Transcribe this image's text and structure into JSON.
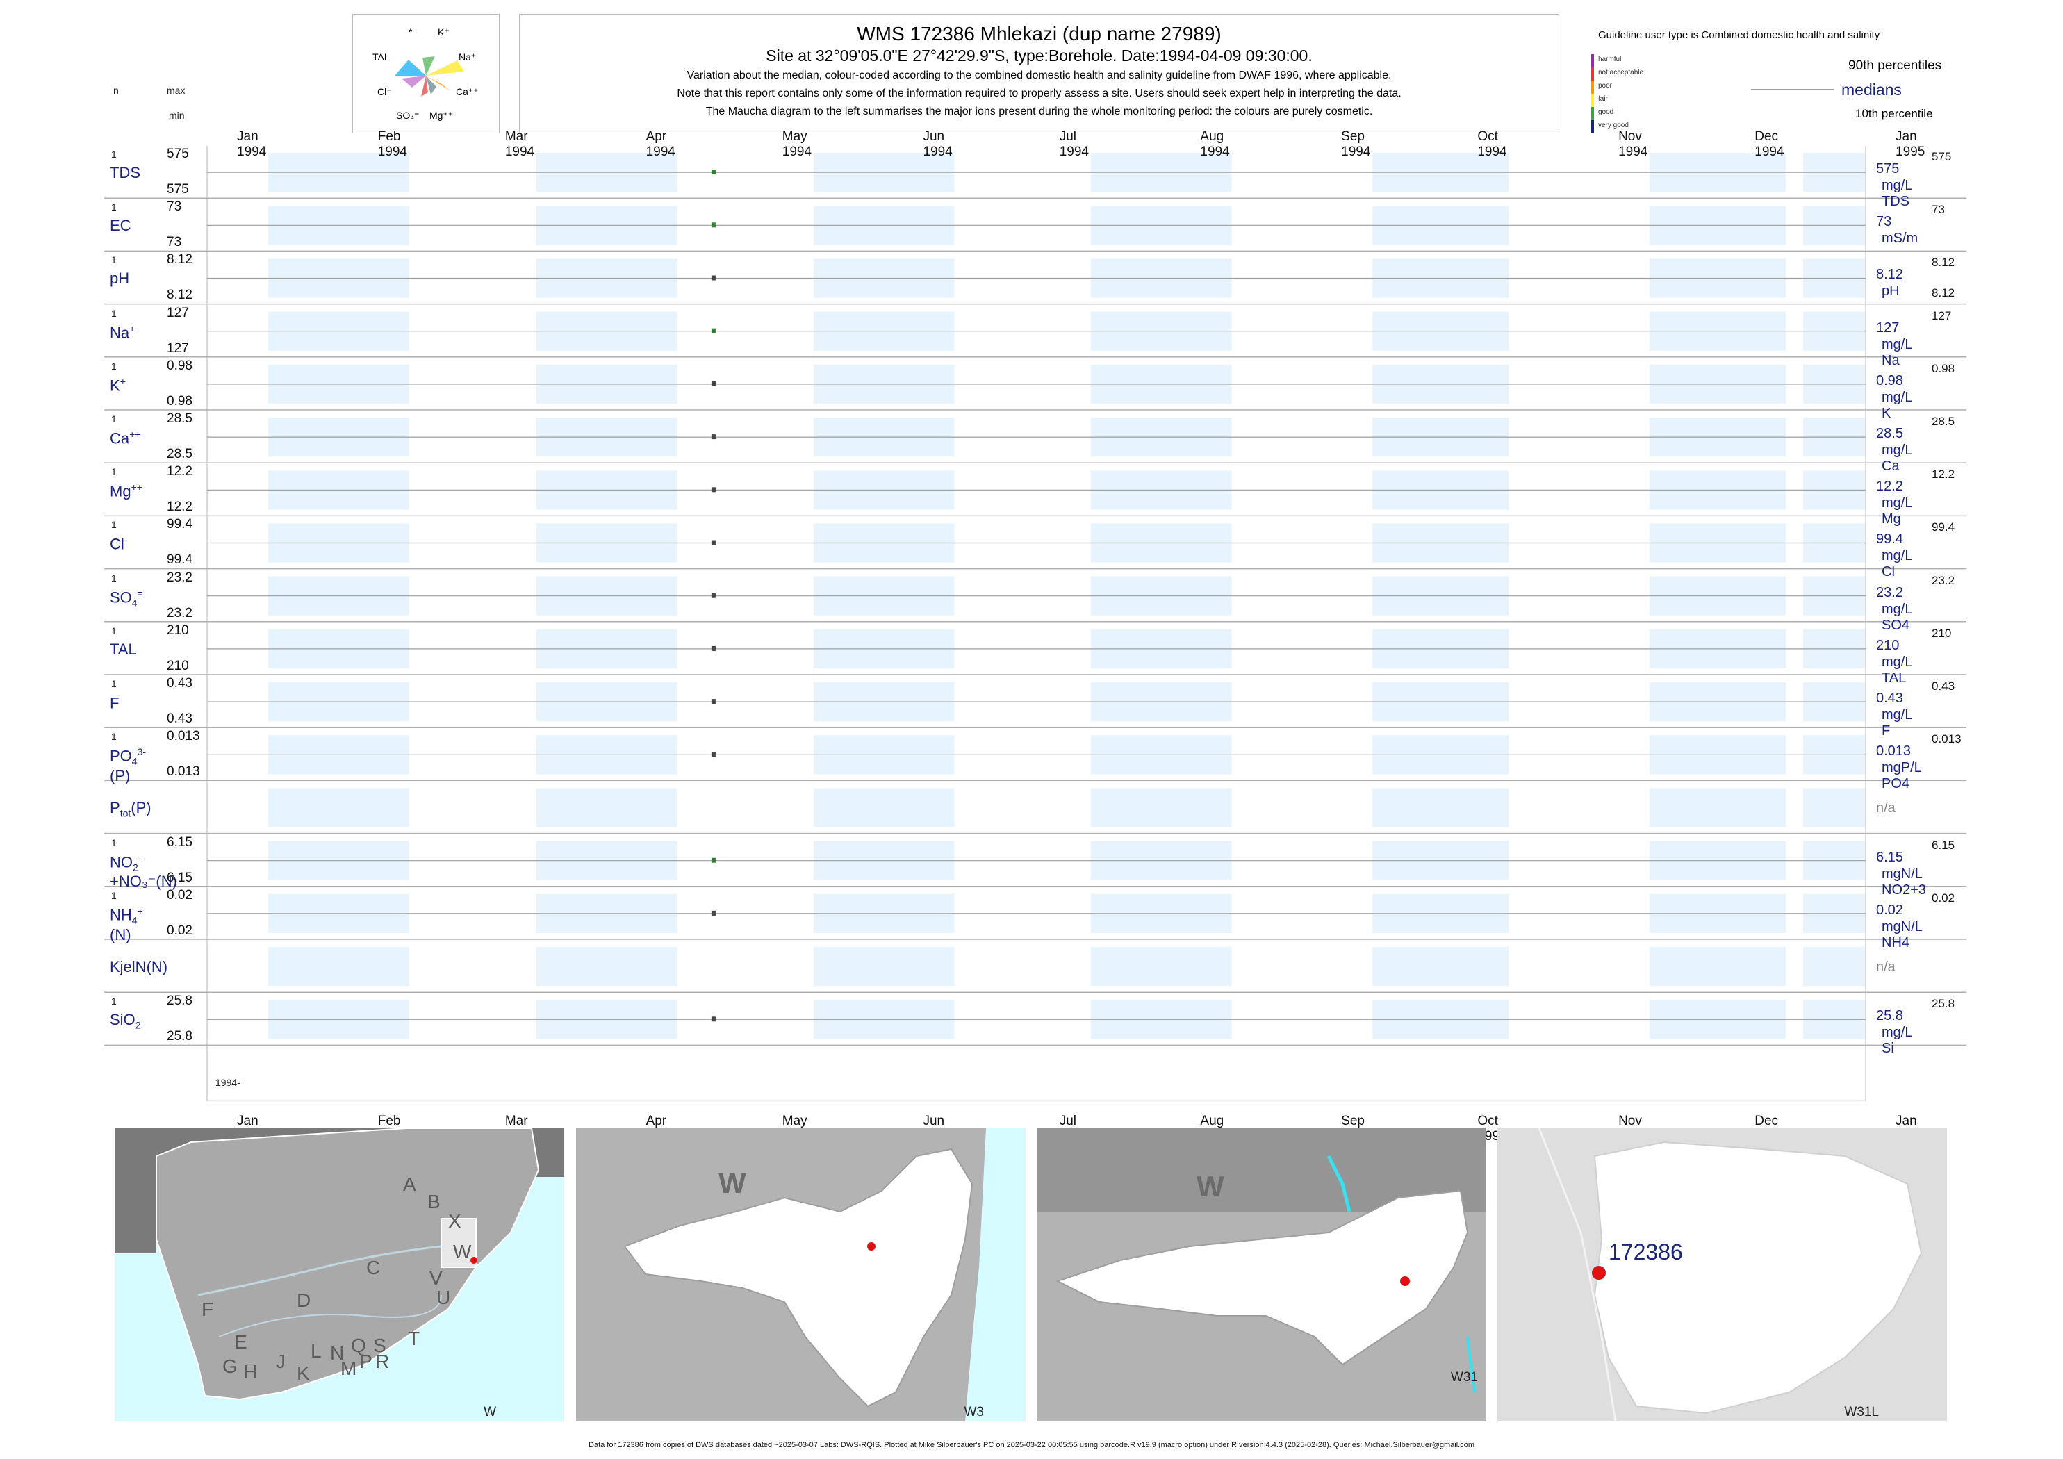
{
  "maucha": {
    "labels": [
      "*",
      "K⁺",
      "TAL",
      "Na⁺",
      "Cl⁻",
      "Ca⁺⁺",
      "SO₄⁼",
      "Mg⁺⁺"
    ]
  },
  "title": {
    "main": "WMS 172386  Mhlekazi (dup name 27989)",
    "site": "Site at 32°09'05.0\"E 27°42'29.9\"S, type:Borehole. Date:1994-04-09 09:30:00.",
    "line1": "Variation about the median,  colour-coded according to the combined domestic health and salinity guideline from DWAF 1996, where applicable.",
    "line2": "Note that this report contains only some of the information required to properly assess a site. Users should seek expert help in interpreting the data.",
    "line3": "The Maucha diagram to the left summarises the major ions present during the whole monitoring period: the colours are purely cosmetic."
  },
  "guideline": {
    "title": "Guideline user type is Combined domestic health and salinity",
    "levels": [
      {
        "label": "harmful",
        "color": "#9c27b0"
      },
      {
        "label": "not acceptable",
        "color": "#e53935"
      },
      {
        "label": "poor",
        "color": "#ff9800"
      },
      {
        "label": "fair",
        "color": "#ffeb3b"
      },
      {
        "label": "good",
        "color": "#43a047"
      },
      {
        "label": "very good",
        "color": "#1a237e"
      }
    ],
    "p90": "90th percentiles",
    "medians": "medians",
    "p10": "10th percentile"
  },
  "header": {
    "n": "n",
    "max": "max",
    "min": "min"
  },
  "chart_data": {
    "type": "scatter",
    "x_months": [
      "Jan 1994",
      "Feb 1994",
      "Mar 1994",
      "Apr 1994",
      "May 1994",
      "Jun 1994",
      "Jul 1994",
      "Aug 1994",
      "Sep 1994",
      "Oct 1994",
      "Nov 1994",
      "Dec 1994",
      "Jan 1995"
    ],
    "xlim": [
      "1994-01-01",
      "1995-01-01"
    ],
    "year_label": "1994-",
    "sample_date": "1994-04-09",
    "panels": [
      {
        "name": "TDS",
        "sup": "",
        "sub": "",
        "n": "1",
        "max": "575",
        "min": "575",
        "value": 575,
        "median": "575",
        "unit": "mg/L TDS",
        "p90": "575",
        "p10": "",
        "color": "#2e7d32"
      },
      {
        "name": "EC",
        "sup": "",
        "sub": "",
        "n": "1",
        "max": "73",
        "min": "73",
        "value": 73,
        "median": "73",
        "unit": "mS/m",
        "p90": "73",
        "p10": "",
        "color": "#2e7d32"
      },
      {
        "name": "pH",
        "sup": "",
        "sub": "",
        "n": "1",
        "max": "8.12",
        "min": "8.12",
        "value": 8.12,
        "median": "8.12",
        "unit": "pH",
        "p90": "8.12",
        "p10": "8.12",
        "color": "#444444"
      },
      {
        "name": "Na",
        "sup": "+",
        "sub": "",
        "n": "1",
        "max": "127",
        "min": "127",
        "value": 127,
        "median": "127",
        "unit": "mg/L Na",
        "p90": "127",
        "p10": "",
        "color": "#2e7d32"
      },
      {
        "name": "K",
        "sup": "+",
        "sub": "",
        "n": "1",
        "max": "0.98",
        "min": "0.98",
        "value": 0.98,
        "median": "0.98",
        "unit": "mg/L K",
        "p90": "0.98",
        "p10": "",
        "color": "#444444"
      },
      {
        "name": "Ca",
        "sup": "++",
        "sub": "",
        "n": "1",
        "max": "28.5",
        "min": "28.5",
        "value": 28.5,
        "median": "28.5",
        "unit": "mg/L Ca",
        "p90": "28.5",
        "p10": "",
        "color": "#444444"
      },
      {
        "name": "Mg",
        "sup": "++",
        "sub": "",
        "n": "1",
        "max": "12.2",
        "min": "12.2",
        "value": 12.2,
        "median": "12.2",
        "unit": "mg/L Mg",
        "p90": "12.2",
        "p10": "",
        "color": "#444444"
      },
      {
        "name": "Cl",
        "sup": "-",
        "sub": "",
        "n": "1",
        "max": "99.4",
        "min": "99.4",
        "value": 99.4,
        "median": "99.4",
        "unit": "mg/L Cl",
        "p90": "99.4",
        "p10": "",
        "color": "#444444"
      },
      {
        "name": "SO",
        "sup": "=",
        "sub": "4",
        "n": "1",
        "max": "23.2",
        "min": "23.2",
        "value": 23.2,
        "median": "23.2",
        "unit": "mg/L SO4",
        "p90": "23.2",
        "p10": "",
        "color": "#444444"
      },
      {
        "name": "TAL",
        "sup": "",
        "sub": "",
        "n": "1",
        "max": "210",
        "min": "210",
        "value": 210,
        "median": "210",
        "unit": "mg/L TAL",
        "p90": "210",
        "p10": "",
        "color": "#444444"
      },
      {
        "name": "F",
        "sup": "-",
        "sub": "",
        "n": "1",
        "max": "0.43",
        "min": "0.43",
        "value": 0.43,
        "median": "0.43",
        "unit": "mg/L F",
        "p90": "0.43",
        "p10": "",
        "color": "#444444"
      },
      {
        "name": "PO",
        "sup": "3-",
        "sub": "4",
        "suffix": "(P)",
        "n": "1",
        "max": "0.013",
        "min": "0.013",
        "value": 0.013,
        "median": "0.013",
        "unit": "mgP/L PO4",
        "p90": "0.013",
        "p10": "",
        "color": "#444444"
      },
      {
        "name": "P",
        "sup": "",
        "sub": "tot",
        "suffix": "(P)",
        "n": "",
        "max": "",
        "min": "",
        "value": null,
        "median": "n/a",
        "unit": "",
        "p90": "",
        "p10": "",
        "color": "#444444"
      },
      {
        "name": "NO",
        "sup": "-",
        "sub": "2",
        "suffix": "+NO₃⁻(N)",
        "n": "1",
        "max": "6.15",
        "min": "6.15",
        "value": 6.15,
        "median": "6.15",
        "unit": "mgN/L NO2+3",
        "p90": "6.15",
        "p10": "",
        "color": "#2e7d32"
      },
      {
        "name": "NH",
        "sup": "+",
        "sub": "4",
        "suffix": "(N)",
        "n": "1",
        "max": "0.02",
        "min": "0.02",
        "value": 0.02,
        "median": "0.02",
        "unit": "mgN/L NH4",
        "p90": "0.02",
        "p10": "",
        "color": "#444444"
      },
      {
        "name": "KjelN(N)",
        "sup": "",
        "sub": "",
        "n": "",
        "max": "",
        "min": "",
        "value": null,
        "median": "n/a",
        "unit": "",
        "p90": "",
        "p10": "",
        "color": "#444444"
      },
      {
        "name": "SiO",
        "sup": "",
        "sub": "2",
        "n": "1",
        "max": "25.8",
        "min": "25.8",
        "value": 25.8,
        "median": "25.8",
        "unit": "mg/L Si",
        "p90": "25.8",
        "p10": "",
        "color": "#444444"
      }
    ]
  },
  "maps": {
    "m1": {
      "corner": "W",
      "regions": [
        "A",
        "B",
        "X",
        "W",
        "C",
        "V",
        "U",
        "D",
        "T",
        "F",
        "E",
        "G",
        "H",
        "J",
        "K",
        "L",
        "N",
        "M",
        "P",
        "Q",
        "S",
        "R"
      ]
    },
    "m2": {
      "big": "W",
      "corner": "W3"
    },
    "m3": {
      "big": "W",
      "corner": "W31"
    },
    "m4": {
      "site": "172386",
      "corner": "W31L"
    }
  },
  "footer": "Data for 172386 from copies of DWS databases dated ~2025-03-07 Labs: DWS-RQIS. Plotted at Mike Silberbauer's PC on 2025-03-22 00:05:55 using barcode.R v19.9 (macro option) under R version 4.4.3 (2025-02-28). Queries: Michael.Silberbauer@gmail.com"
}
